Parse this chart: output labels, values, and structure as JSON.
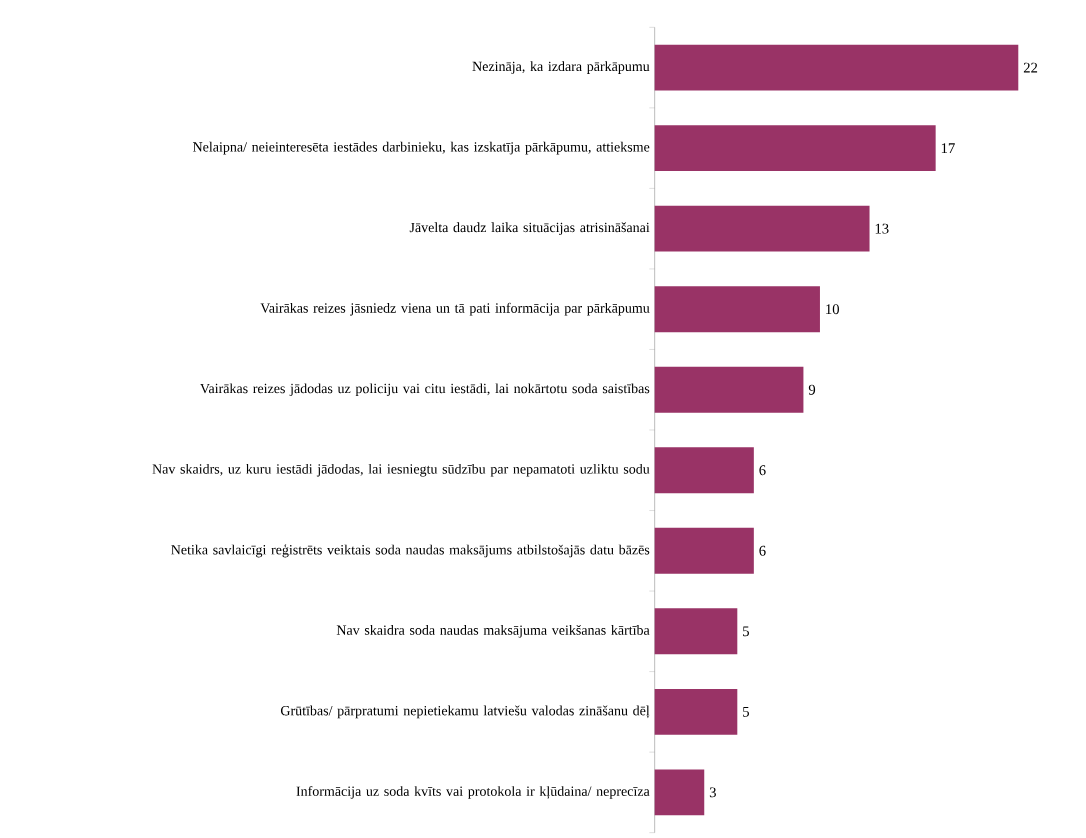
{
  "chart_data": {
    "type": "bar",
    "orientation": "horizontal",
    "categories": [
      "Nezināja, ka izdara pārkāpumu",
      "Nelaipna/ neieinteresēta iestādes darbinieku, kas izskatīja pārkāpumu, attieksme",
      "Jāvelta daudz laika situācijas atrisināšanai",
      "Vairākas reizes jāsniedz viena un tā pati informācija par pārkāpumu",
      "Vairākas reizes jādodas uz policiju vai citu iestādi, lai nokārtotu soda saistības",
      "Nav skaidrs, uz kuru iestādi jādodas, lai iesniegtu sūdzību par nepamatoti uzliktu sodu",
      "Netika savlaicīgi reģistrēts veiktais soda naudas maksājums atbilstošajās datu bāzēs",
      "Nav skaidra soda naudas maksājuma veikšanas kārtība",
      "Grūtības/ pārpratumi nepietiekamu latviešu valodas zināšanu dēļ",
      "Informācija uz soda kvīts vai protokola ir kļūdaina/ neprecīza"
    ],
    "values": [
      22,
      17,
      13,
      10,
      9,
      6,
      6,
      5,
      5,
      3
    ],
    "color": "#993366",
    "data_labels": true
  }
}
